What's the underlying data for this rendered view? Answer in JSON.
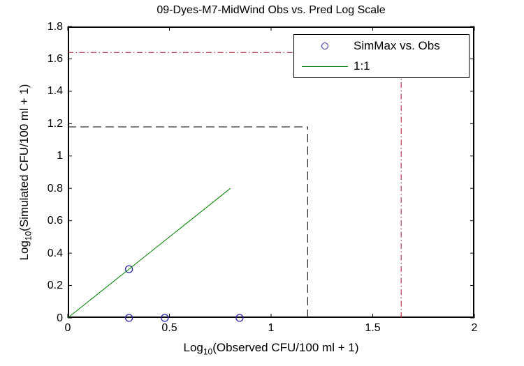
{
  "figure": {
    "background": "#ffffff"
  },
  "chart_data": {
    "type": "scatter",
    "title": "09-Dyes-M7-MidWind Obs vs. Pred Log Scale",
    "xlabel": {
      "pre": "Log",
      "sub": "10",
      "post": "(Observed CFU/100 ml + 1)"
    },
    "ylabel": {
      "pre": "Log",
      "sub": "10",
      "post": "(Simulated CFU/100 ml + 1)"
    },
    "xlim": [
      0,
      2
    ],
    "ylim": [
      0,
      1.8
    ],
    "xticks": [
      0,
      0.5,
      1,
      1.5,
      2
    ],
    "xtick_labels": [
      "0",
      "0.5",
      "1",
      "1.5",
      "2"
    ],
    "yticks": [
      0,
      0.2,
      0.4,
      0.6,
      0.8,
      1,
      1.2,
      1.4,
      1.6,
      1.8
    ],
    "ytick_labels": [
      "0",
      "0.2",
      "0.4",
      "0.6",
      "0.8",
      "1",
      "1.2",
      "1.4",
      "1.6",
      "1.8"
    ],
    "grid": false,
    "axis_color": "#000000",
    "series": [
      {
        "name": "SimMax vs. Obs",
        "type": "scatter",
        "marker": "circle",
        "color": "#2929a3",
        "points": [
          [
            0.301,
            0.301
          ],
          [
            0.301,
            0
          ],
          [
            0.477,
            0
          ],
          [
            0.845,
            0
          ]
        ]
      },
      {
        "name": "1:1",
        "type": "line",
        "color": "#008000",
        "points": [
          [
            0,
            0
          ],
          [
            0.8,
            0.8
          ]
        ]
      }
    ],
    "reference_lines": [
      {
        "name": "black-dashed-horizontal",
        "style": "dashed",
        "color": "#000000",
        "points": [
          [
            0,
            1.18
          ],
          [
            1.18,
            1.18
          ]
        ]
      },
      {
        "name": "black-dashed-vertical",
        "style": "dashed",
        "color": "#000000",
        "points": [
          [
            1.18,
            0
          ],
          [
            1.18,
            1.18
          ]
        ]
      },
      {
        "name": "red-dashdot-horizontal",
        "style": "dashdot",
        "color": "#a2142f",
        "points": [
          [
            0,
            1.64
          ],
          [
            1.64,
            1.64
          ]
        ]
      },
      {
        "name": "red-dashdot-vertical",
        "style": "dashdot",
        "color": "#a2142f",
        "points": [
          [
            1.64,
            0
          ],
          [
            1.64,
            1.64
          ]
        ]
      }
    ],
    "legend": {
      "position": "top-right",
      "entries": [
        {
          "label": "SimMax vs. Obs",
          "marker": "circle",
          "color": "#2929a3"
        },
        {
          "label": "1:1",
          "marker": "line",
          "color": "#008000"
        }
      ]
    }
  }
}
